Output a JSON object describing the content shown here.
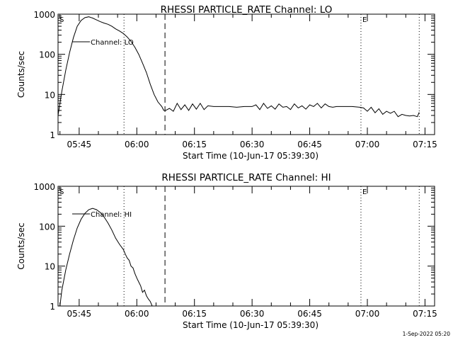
{
  "footer": {
    "timestamp": "1-Sep-2022 05:20"
  },
  "chart_data": [
    {
      "type": "line",
      "title": "RHESSI PARTICLE_RATE Channel: LO",
      "xlabel": "Start Time (10-Jun-17 05:39:30)",
      "ylabel": "Counts/sec",
      "y_scale": "log",
      "ylim": [
        1,
        1000
      ],
      "xlim": [
        "05:39:30",
        "07:17:30"
      ],
      "x_ticks": [
        "05:45",
        "06:00",
        "06:15",
        "06:30",
        "06:45",
        "07:00",
        "07:15"
      ],
      "y_ticks": [
        "1",
        "10",
        "100",
        "1000"
      ],
      "markers": [
        {
          "label": "S",
          "time": "05:39:30",
          "style": "solid"
        },
        {
          "label": "",
          "time": "05:56:40",
          "style": "dotted"
        },
        {
          "label": "",
          "time": "06:07:20",
          "style": "dashed"
        },
        {
          "label": "E",
          "time": "06:58:20",
          "style": "dotted"
        },
        {
          "label": "",
          "time": "07:13:30",
          "style": "dotted"
        }
      ],
      "legend": {
        "label": "Channel: LO",
        "placement": "top-left"
      },
      "series": [
        {
          "name": "Channel: LO",
          "x": [
            "05:39:30",
            "05:40:30",
            "05:41:30",
            "05:42:30",
            "05:43:30",
            "05:44:30",
            "05:45:30",
            "05:46:30",
            "05:47:30",
            "05:48:30",
            "05:49:30",
            "05:50:30",
            "05:51:30",
            "05:52:30",
            "05:53:30",
            "05:54:30",
            "05:55:30",
            "05:56:30",
            "05:57:30",
            "05:58:30",
            "05:59:30",
            "06:00:30",
            "06:01:30",
            "06:02:30",
            "06:03:30",
            "06:04:30",
            "06:05:30",
            "06:06:30",
            "06:07:00",
            "06:07:30",
            "06:08:30",
            "06:09:30",
            "06:10:30",
            "06:11:30",
            "06:12:30",
            "06:13:30",
            "06:14:30",
            "06:15:30",
            "06:16:30",
            "06:17:30",
            "06:18:30",
            "06:20:00",
            "06:22:00",
            "06:24:00",
            "06:26:00",
            "06:28:00",
            "06:30:00",
            "06:31:00",
            "06:32:00",
            "06:33:00",
            "06:34:00",
            "06:35:00",
            "06:36:00",
            "06:37:00",
            "06:38:00",
            "06:39:00",
            "06:40:00",
            "06:41:00",
            "06:42:00",
            "06:43:00",
            "06:44:00",
            "06:45:00",
            "06:46:00",
            "06:47:00",
            "06:48:00",
            "06:49:00",
            "06:50:00",
            "06:51:00",
            "06:52:00",
            "06:54:00",
            "06:56:00",
            "06:58:00",
            "06:59:00",
            "07:00:00",
            "07:01:00",
            "07:02:00",
            "07:03:00",
            "07:04:00",
            "07:05:00",
            "07:06:00",
            "07:07:00",
            "07:08:00",
            "07:09:00",
            "07:10:00",
            "07:11:00",
            "07:12:00",
            "07:13:00",
            "07:13:30"
          ],
          "y": [
            3,
            12,
            40,
            110,
            260,
            500,
            700,
            820,
            860,
            800,
            720,
            650,
            600,
            560,
            500,
            430,
            380,
            330,
            270,
            210,
            150,
            100,
            60,
            35,
            18,
            10,
            6.5,
            5,
            4,
            4,
            4.5,
            3.8,
            6,
            4.2,
            5.5,
            4,
            5.8,
            4.3,
            6,
            4.2,
            5.2,
            5,
            5,
            5,
            4.8,
            5,
            5,
            5.5,
            4.2,
            6,
            4.5,
            5.2,
            4.3,
            5.8,
            4.8,
            5,
            4.2,
            5.8,
            4.6,
            5.2,
            4.3,
            5.5,
            5,
            6,
            4.6,
            5.8,
            5,
            4.8,
            5,
            5,
            5,
            4.8,
            4.6,
            3.8,
            4.8,
            3.5,
            4.4,
            3.2,
            3.8,
            3.4,
            3.8,
            2.8,
            3.2,
            3,
            2.9,
            3,
            2.8,
            3.6
          ]
        }
      ]
    },
    {
      "type": "line",
      "title": "RHESSI PARTICLE_RATE Channel: HI",
      "xlabel": "Start Time (10-Jun-17 05:39:30)",
      "ylabel": "Counts/sec",
      "y_scale": "log",
      "ylim": [
        1,
        1000
      ],
      "xlim": [
        "05:39:30",
        "07:17:30"
      ],
      "x_ticks": [
        "05:45",
        "06:00",
        "06:15",
        "06:30",
        "06:45",
        "07:00",
        "07:15"
      ],
      "y_ticks": [
        "1",
        "10",
        "100",
        "1000"
      ],
      "markers": [
        {
          "label": "S",
          "time": "05:39:30",
          "style": "solid"
        },
        {
          "label": "",
          "time": "05:56:40",
          "style": "dotted"
        },
        {
          "label": "",
          "time": "06:07:20",
          "style": "dashed"
        },
        {
          "label": "E",
          "time": "06:58:20",
          "style": "dotted"
        },
        {
          "label": "",
          "time": "07:13:30",
          "style": "dotted"
        }
      ],
      "legend": {
        "label": "Channel: HI",
        "placement": "top-left"
      },
      "series": [
        {
          "name": "Channel: HI",
          "x": [
            "05:40:00",
            "05:40:30",
            "05:41:30",
            "05:42:30",
            "05:43:30",
            "05:44:30",
            "05:45:30",
            "05:46:30",
            "05:47:30",
            "05:48:30",
            "05:49:30",
            "05:50:30",
            "05:51:30",
            "05:52:30",
            "05:53:30",
            "05:54:30",
            "05:55:30",
            "05:56:30",
            "05:57:00",
            "05:57:30",
            "05:58:00",
            "05:58:30",
            "05:59:00",
            "05:59:30",
            "06:00:00",
            "06:00:30",
            "06:01:00",
            "06:01:30",
            "06:02:00",
            "06:02:30",
            "06:03:00",
            "06:03:30",
            "06:04:00"
          ],
          "y": [
            1,
            2.5,
            8,
            20,
            45,
            90,
            150,
            210,
            260,
            280,
            260,
            220,
            170,
            120,
            80,
            50,
            35,
            26,
            20,
            16,
            14,
            10,
            9,
            6.5,
            5,
            4,
            3.2,
            2.2,
            2.5,
            1.8,
            1.5,
            1.3,
            1
          ]
        }
      ]
    }
  ]
}
